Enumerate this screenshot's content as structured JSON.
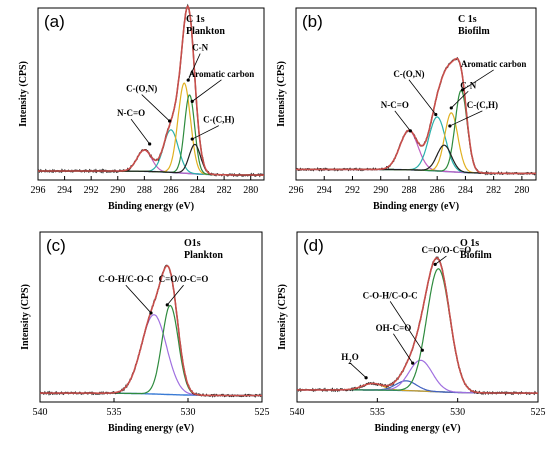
{
  "chart_data": [
    {
      "type": "line",
      "panel_label": "(a)",
      "title": "C 1s",
      "subtitle": "Plankton",
      "xlabel": "Binding energy (eV)",
      "ylabel": "Intensity (CPS)",
      "xlim": [
        296,
        279
      ],
      "ylim": [
        0,
        1.05
      ],
      "x_reversed": true,
      "xticks": [
        296,
        294,
        292,
        290,
        288,
        286,
        284,
        282,
        280
      ],
      "background": {
        "low": 0.03,
        "high": 0.055
      },
      "peaks": [
        {
          "label": "N-C=O",
          "center": 288.0,
          "height": 0.13,
          "fwhm": 1.3,
          "color": "#c060c0"
        },
        {
          "label": "C-(O,N)",
          "center": 286.0,
          "height": 0.26,
          "fwhm": 1.3,
          "color": "#2ab0ab"
        },
        {
          "label": "C-N",
          "center": 285.0,
          "height": 0.55,
          "fwhm": 1.1,
          "color": "#e0b020"
        },
        {
          "label": "Aromatic carbon",
          "center": 284.6,
          "height": 0.48,
          "fwhm": 0.9,
          "color": "#2e8b3e"
        },
        {
          "label": "C-(C,H)",
          "center": 284.2,
          "height": 0.18,
          "fwhm": 1.0,
          "color": "#202020"
        }
      ],
      "annotations": [
        {
          "text": "C-N",
          "x": 283.8,
          "y": 0.79,
          "ax": 284.7,
          "ay": 0.61
        },
        {
          "text": "Aromatic carbon",
          "x": 282.2,
          "y": 0.63,
          "ax": 284.4,
          "ay": 0.48
        },
        {
          "text": "C-(O,N)",
          "x": 288.2,
          "y": 0.54,
          "ax": 286.1,
          "ay": 0.36
        },
        {
          "text": "N-C=O",
          "x": 289.0,
          "y": 0.39,
          "ax": 287.6,
          "ay": 0.22
        },
        {
          "text": "C-(C,H)",
          "x": 282.4,
          "y": 0.35,
          "ax": 284.4,
          "ay": 0.25
        }
      ]
    },
    {
      "type": "line",
      "panel_label": "(b)",
      "title": "C 1s",
      "subtitle": "Biofilm",
      "xlabel": "Binding energy (eV)",
      "ylabel": "Intensity (CPS)",
      "xlim": [
        296,
        279
      ],
      "ylim": [
        0,
        1.05
      ],
      "x_reversed": true,
      "xticks": [
        296,
        294,
        292,
        290,
        288,
        286,
        284,
        282,
        280
      ],
      "background": {
        "low": 0.04,
        "high": 0.065
      },
      "peaks": [
        {
          "label": "N-C=O",
          "center": 288.0,
          "height": 0.24,
          "fwhm": 1.5,
          "color": "#c060c0"
        },
        {
          "label": "C-(O,N)",
          "center": 286.0,
          "height": 0.33,
          "fwhm": 1.4,
          "color": "#2ab0ab"
        },
        {
          "label": "C-N",
          "center": 285.0,
          "height": 0.36,
          "fwhm": 1.1,
          "color": "#e0b020"
        },
        {
          "label": "Aromatic carbon",
          "center": 284.3,
          "height": 0.5,
          "fwhm": 1.0,
          "color": "#2e8b3e"
        },
        {
          "label": "C-(C,H)",
          "center": 285.5,
          "height": 0.16,
          "fwhm": 1.2,
          "color": "#202020"
        }
      ],
      "annotations": [
        {
          "text": "Aromatic carbon",
          "x": 282.0,
          "y": 0.69,
          "ax": 284.2,
          "ay": 0.55
        },
        {
          "text": "C-N",
          "x": 283.8,
          "y": 0.56,
          "ax": 285.0,
          "ay": 0.44
        },
        {
          "text": "C-(O,N)",
          "x": 288.0,
          "y": 0.63,
          "ax": 286.1,
          "ay": 0.4
        },
        {
          "text": "N-C=O",
          "x": 289.0,
          "y": 0.44,
          "ax": 287.9,
          "ay": 0.3
        },
        {
          "text": "C-(C,H)",
          "x": 282.8,
          "y": 0.44,
          "ax": 285.1,
          "ay": 0.33
        }
      ]
    },
    {
      "type": "line",
      "panel_label": "(c)",
      "title": "O1s",
      "subtitle": "Plankton",
      "xlabel": "Binding energy (eV)",
      "ylabel": "Intensity (CPS)",
      "xlim": [
        540,
        525
      ],
      "ylim": [
        0,
        1.05
      ],
      "x_reversed": true,
      "xticks": [
        540,
        535,
        530,
        525
      ],
      "background": {
        "low": 0.04,
        "high": 0.055
      },
      "peaks": [
        {
          "label": "C-O-H/C-O-C",
          "center": 532.3,
          "height": 0.49,
          "fwhm": 2.0,
          "color": "#a070e0"
        },
        {
          "label": "C=O/O-C=O",
          "center": 531.2,
          "height": 0.55,
          "fwhm": 1.3,
          "color": "#2e8b3e"
        }
      ],
      "annotations": [
        {
          "text": "C-O-H/C-O-C",
          "x": 534.2,
          "y": 0.74,
          "ax": 532.5,
          "ay": 0.55
        },
        {
          "text": "C=O/O-C=O",
          "x": 530.3,
          "y": 0.74,
          "ax": 531.4,
          "ay": 0.6
        }
      ]
    },
    {
      "type": "line",
      "panel_label": "(d)",
      "title": "O 1s",
      "subtitle": "Biofilm",
      "xlabel": "Binding energy (eV)",
      "ylabel": "Intensity (CPS)",
      "xlim": [
        540,
        525
      ],
      "ylim": [
        0,
        1.05
      ],
      "x_reversed": true,
      "xticks": [
        540,
        535,
        530,
        525
      ],
      "background": {
        "low": 0.055,
        "high": 0.075
      },
      "peaks": [
        {
          "label": "H2O",
          "center": 535.3,
          "height": 0.04,
          "fwhm": 1.5,
          "color": "#d0a020"
        },
        {
          "label": "OH-C=O",
          "center": 533.2,
          "height": 0.06,
          "fwhm": 1.5,
          "color": "#4060c0"
        },
        {
          "label": "C-O-H/C-O-C",
          "center": 532.3,
          "height": 0.19,
          "fwhm": 1.7,
          "color": "#a070e0"
        },
        {
          "label": "C=O/O-C=O",
          "center": 531.2,
          "height": 0.76,
          "fwhm": 1.7,
          "color": "#2e8b3e"
        }
      ],
      "annotations": [
        {
          "text": "C=O/O-C=O",
          "x": 530.7,
          "y": 0.92,
          "ax": 531.4,
          "ay": 0.85
        },
        {
          "text": "C-O-H/C-O-C",
          "x": 534.2,
          "y": 0.64,
          "ax": 532.2,
          "ay": 0.32
        },
        {
          "text": "OH-C=O",
          "x": 534.0,
          "y": 0.44,
          "ax": 532.8,
          "ay": 0.24
        },
        {
          "text": "H2O",
          "x": 536.7,
          "y": 0.26,
          "ax": 535.7,
          "ay": 0.15
        }
      ]
    }
  ]
}
